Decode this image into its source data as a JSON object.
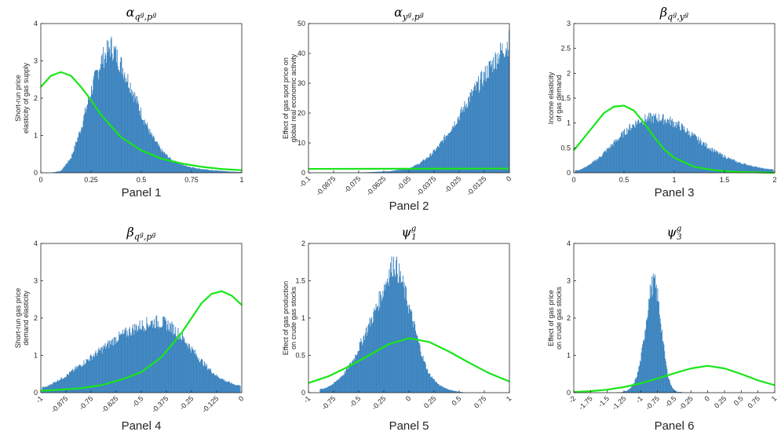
{
  "colors": {
    "histogram": "#3b83bf",
    "prior": "#19e619",
    "axis": "#262626",
    "grid": "#e6e6e6"
  },
  "chart_data": [
    {
      "type": "bar",
      "title": "α_{q^g,p^g}",
      "title_main": "α",
      "title_sub": "q",
      "title_subsup": "g",
      "title_sep": ",p",
      "title_sub2sup": "g",
      "ylabel_lines": [
        "Short-run price",
        "elasticity of gas supply"
      ],
      "panel_label": "Panel 1",
      "xlim": [
        0,
        1
      ],
      "ylim": [
        0,
        4
      ],
      "xticks": [
        0,
        0.25,
        0.5,
        0.75,
        1
      ],
      "xtick_labels": [
        "0",
        "0.25",
        "0.5",
        "0.75",
        "1"
      ],
      "xtick_rotated": false,
      "yticks": [
        0,
        1,
        2,
        3,
        4
      ],
      "ytick_labels": [
        "0",
        "1",
        "2",
        "3",
        "4"
      ],
      "series": [
        {
          "kind": "histogram",
          "x": [
            0.05,
            0.1,
            0.15,
            0.2,
            0.25,
            0.3,
            0.35,
            0.4,
            0.45,
            0.5,
            0.55,
            0.6,
            0.65,
            0.7,
            0.75,
            0.8,
            0.85,
            0.9,
            0.95,
            1.0
          ],
          "y": [
            0,
            0.05,
            0.4,
            1.2,
            2.2,
            3.0,
            3.4,
            2.9,
            2.3,
            1.6,
            1.0,
            0.6,
            0.35,
            0.22,
            0.15,
            0.1,
            0.07,
            0.05,
            0.03,
            0.02
          ]
        },
        {
          "kind": "line",
          "x": [
            0,
            0.05,
            0.1,
            0.15,
            0.2,
            0.25,
            0.3,
            0.4,
            0.5,
            0.6,
            0.7,
            0.8,
            0.9,
            1.0
          ],
          "y": [
            2.3,
            2.6,
            2.7,
            2.6,
            2.3,
            1.95,
            1.55,
            0.95,
            0.6,
            0.38,
            0.25,
            0.16,
            0.1,
            0.07
          ]
        }
      ]
    },
    {
      "type": "bar",
      "title": "α_{y^g,p^g}",
      "title_main": "α",
      "title_sub": "y",
      "title_subsup": "g",
      "title_sep": ",p",
      "title_sub2sup": "g",
      "ylabel_lines": [
        "Effect of gas spot price on",
        "global real economic activity"
      ],
      "panel_label": "Panel 2",
      "xlim": [
        -0.1,
        0
      ],
      "ylim": [
        0,
        50
      ],
      "xticks": [
        -0.1,
        -0.0875,
        -0.075,
        -0.0625,
        -0.05,
        -0.0375,
        -0.025,
        -0.0125,
        0
      ],
      "xtick_labels": [
        "-0.1",
        "-0.0875",
        "-0.075",
        "-0.0625",
        "-0.05",
        "-0.0375",
        "-0.025",
        "-0.0125",
        "0"
      ],
      "xtick_rotated": true,
      "yticks": [
        0,
        10,
        20,
        30,
        40,
        50
      ],
      "ytick_labels": [
        "0",
        "10",
        "20",
        "30",
        "40",
        "50"
      ],
      "series": [
        {
          "kind": "histogram",
          "x": [
            -0.1,
            -0.09,
            -0.08,
            -0.07,
            -0.06,
            -0.05,
            -0.045,
            -0.04,
            -0.035,
            -0.03,
            -0.025,
            -0.02,
            -0.015,
            -0.01,
            -0.005,
            0
          ],
          "y": [
            0,
            0,
            0,
            0.2,
            0.5,
            1.5,
            3,
            5.5,
            9,
            14,
            19,
            25,
            30,
            35,
            40,
            44
          ]
        },
        {
          "kind": "line",
          "x": [
            -0.1,
            0
          ],
          "y": [
            1.3,
            1.4
          ]
        }
      ]
    },
    {
      "type": "bar",
      "title": "β_{q^g,y^g}",
      "title_main": "β",
      "title_sub": "q",
      "title_subsup": "g",
      "title_sep": ",y",
      "title_sub2sup": "g",
      "ylabel_lines": [
        "Income elasticity",
        "of gas demand"
      ],
      "panel_label": "Panel 3",
      "xlim": [
        0,
        2
      ],
      "ylim": [
        0,
        3
      ],
      "xticks": [
        0,
        0.5,
        1,
        1.5,
        2
      ],
      "xtick_labels": [
        "0",
        "0.5",
        "1",
        "1.5",
        "2"
      ],
      "xtick_rotated": false,
      "yticks": [
        0,
        0.5,
        1,
        1.5,
        2,
        2.5,
        3
      ],
      "ytick_labels": [
        "0",
        "0.5",
        "1",
        "1.5",
        "2",
        "2.5",
        "3"
      ],
      "series": [
        {
          "kind": "histogram",
          "x": [
            0.05,
            0.15,
            0.25,
            0.35,
            0.45,
            0.55,
            0.65,
            0.75,
            0.85,
            0.95,
            1.05,
            1.15,
            1.25,
            1.35,
            1.45,
            1.55,
            1.65,
            1.75,
            1.85,
            1.95
          ],
          "y": [
            0.05,
            0.15,
            0.3,
            0.5,
            0.7,
            0.9,
            1.05,
            1.1,
            1.1,
            1.05,
            0.95,
            0.8,
            0.65,
            0.5,
            0.38,
            0.28,
            0.2,
            0.15,
            0.1,
            0.07
          ]
        },
        {
          "kind": "line",
          "x": [
            0,
            0.1,
            0.2,
            0.3,
            0.4,
            0.5,
            0.6,
            0.7,
            0.8,
            0.9,
            1.0,
            1.2,
            1.4,
            1.6,
            1.8,
            2.0
          ],
          "y": [
            0.45,
            0.7,
            0.95,
            1.2,
            1.33,
            1.35,
            1.25,
            1.0,
            0.72,
            0.47,
            0.3,
            0.12,
            0.05,
            0.02,
            0.01,
            0.0
          ]
        }
      ]
    },
    {
      "type": "bar",
      "title": "β_{q^g,p^g}",
      "title_main": "β",
      "title_sub": "q",
      "title_subsup": "g",
      "title_sep": ",p",
      "title_sub2sup": "g",
      "ylabel_lines": [
        "Short-run gas price",
        "demand elasticity"
      ],
      "panel_label": "Panel 4",
      "xlim": [
        -1,
        0
      ],
      "ylim": [
        0,
        4
      ],
      "xticks": [
        -1,
        -0.875,
        -0.75,
        -0.625,
        -0.5,
        -0.375,
        -0.25,
        -0.125,
        0
      ],
      "xtick_labels": [
        "-1",
        "-0.875",
        "-0.75",
        "-0.625",
        "-0.5",
        "-0.375",
        "-0.25",
        "-0.125",
        "0"
      ],
      "xtick_rotated": true,
      "yticks": [
        0,
        1,
        2,
        3,
        4
      ],
      "ytick_labels": [
        "0",
        "1",
        "2",
        "3",
        "4"
      ],
      "series": [
        {
          "kind": "histogram",
          "x": [
            -0.975,
            -0.925,
            -0.875,
            -0.825,
            -0.775,
            -0.725,
            -0.675,
            -0.625,
            -0.575,
            -0.525,
            -0.475,
            -0.425,
            -0.375,
            -0.325,
            -0.275,
            -0.225,
            -0.175,
            -0.125,
            -0.075,
            -0.025
          ],
          "y": [
            0.15,
            0.3,
            0.45,
            0.65,
            0.85,
            1.05,
            1.25,
            1.45,
            1.6,
            1.75,
            1.85,
            1.9,
            1.85,
            1.65,
            1.35,
            1.0,
            0.7,
            0.45,
            0.3,
            0.2
          ]
        },
        {
          "kind": "line",
          "x": [
            -1,
            -0.9,
            -0.8,
            -0.7,
            -0.6,
            -0.5,
            -0.4,
            -0.3,
            -0.25,
            -0.2,
            -0.15,
            -0.1,
            -0.05,
            0
          ],
          "y": [
            0.05,
            0.08,
            0.12,
            0.2,
            0.35,
            0.55,
            0.95,
            1.6,
            2.0,
            2.4,
            2.65,
            2.72,
            2.6,
            2.35
          ]
        }
      ]
    },
    {
      "type": "bar",
      "title": "ψ_1^g",
      "title_main": "ψ",
      "title_sub": "1",
      "title_subsup": "",
      "title_sep": "",
      "title_sub2sup": "",
      "title_sup": "g",
      "ylabel_lines": [
        "Effect of gas production",
        "on crude gas stocks"
      ],
      "panel_label": "Panel 5",
      "xlim": [
        -1,
        1
      ],
      "ylim": [
        0,
        2
      ],
      "xticks": [
        -1,
        -0.75,
        -0.5,
        -0.25,
        0,
        0.25,
        0.5,
        0.75,
        1
      ],
      "xtick_labels": [
        "-1",
        "-0.75",
        "-0.5",
        "-0.25",
        "0",
        "0.25",
        "0.5",
        "0.75",
        "1"
      ],
      "xtick_rotated": true,
      "yticks": [
        0,
        0.5,
        1,
        1.5,
        2
      ],
      "ytick_labels": [
        "0",
        "0.5",
        "1",
        "1.5",
        "2"
      ],
      "series": [
        {
          "kind": "histogram",
          "x": [
            -0.85,
            -0.75,
            -0.65,
            -0.55,
            -0.45,
            -0.35,
            -0.25,
            -0.2,
            -0.15,
            -0.1,
            -0.05,
            0,
            0.05,
            0.1,
            0.15,
            0.2,
            0.3,
            0.4,
            0.5
          ],
          "y": [
            0.05,
            0.12,
            0.25,
            0.45,
            0.75,
            1.05,
            1.4,
            1.6,
            1.75,
            1.6,
            1.4,
            1.15,
            0.9,
            0.65,
            0.42,
            0.25,
            0.1,
            0.04,
            0.01
          ]
        },
        {
          "kind": "line",
          "x": [
            -1,
            -0.8,
            -0.6,
            -0.4,
            -0.2,
            0,
            0.2,
            0.4,
            0.6,
            0.8,
            1.0
          ],
          "y": [
            0.13,
            0.22,
            0.35,
            0.5,
            0.65,
            0.73,
            0.68,
            0.55,
            0.4,
            0.26,
            0.15
          ]
        }
      ]
    },
    {
      "type": "bar",
      "title": "ψ_3^g",
      "title_main": "ψ",
      "title_sub": "3",
      "title_subsup": "",
      "title_sep": "",
      "title_sub2sup": "",
      "title_sup": "g",
      "ylabel_lines": [
        "Effect of gas price",
        "on crude gas stocks"
      ],
      "panel_label": "Panel 6",
      "xlim": [
        -2,
        1
      ],
      "ylim": [
        0,
        4
      ],
      "xticks": [
        -2,
        -1.75,
        -1.5,
        -1.25,
        -1,
        -0.75,
        -0.5,
        -0.25,
        0,
        0.25,
        0.5,
        0.75,
        1
      ],
      "xtick_labels": [
        "-2",
        "-1.75",
        "-1.5",
        "-1.25",
        "-1",
        "-0.75",
        "-0.5",
        "-0.25",
        "0",
        "0.25",
        "0.5",
        "0.75",
        "1"
      ],
      "xtick_rotated": true,
      "yticks": [
        0,
        1,
        2,
        3,
        4
      ],
      "ytick_labels": [
        "0",
        "1",
        "2",
        "3",
        "4"
      ],
      "series": [
        {
          "kind": "histogram",
          "x": [
            -1.3,
            -1.25,
            -1.2,
            -1.15,
            -1.1,
            -1.05,
            -1.0,
            -0.95,
            -0.9,
            -0.85,
            -0.8,
            -0.75,
            -0.7,
            -0.65,
            -0.6,
            -0.55,
            -0.5,
            -0.45
          ],
          "y": [
            0.01,
            0.03,
            0.06,
            0.12,
            0.25,
            0.5,
            0.9,
            1.5,
            2.2,
            2.8,
            3.0,
            2.6,
            1.9,
            1.1,
            0.5,
            0.2,
            0.07,
            0.02
          ]
        },
        {
          "kind": "line",
          "x": [
            -2,
            -1.75,
            -1.5,
            -1.25,
            -1,
            -0.75,
            -0.5,
            -0.25,
            0,
            0.25,
            0.5,
            0.75,
            1
          ],
          "y": [
            0.02,
            0.04,
            0.08,
            0.15,
            0.25,
            0.38,
            0.52,
            0.65,
            0.72,
            0.65,
            0.5,
            0.33,
            0.2
          ]
        }
      ]
    }
  ]
}
